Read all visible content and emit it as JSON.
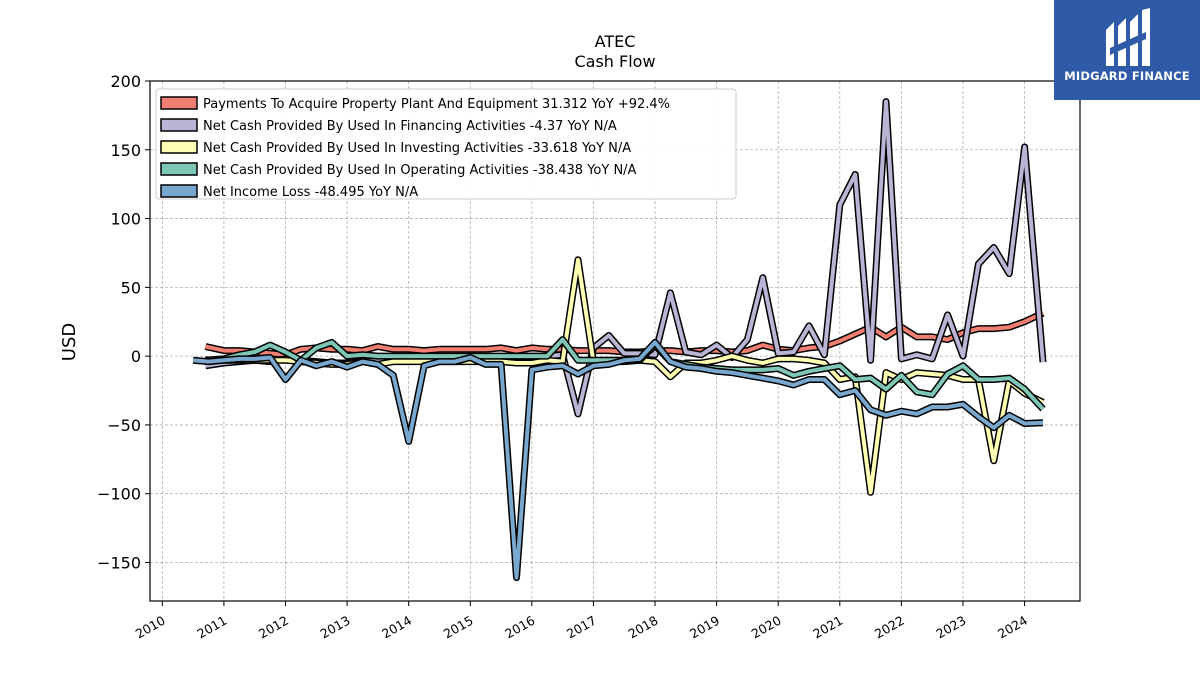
{
  "logo": {
    "text": "MIDGARD FINANCE",
    "icon": "midgard-logo-icon",
    "background": "#2f5aa8"
  },
  "chart_data": {
    "type": "line",
    "title": "ATEC",
    "subtitle": "Cash Flow",
    "ylabel": "USD",
    "xlabel": "",
    "xlim": [
      2009.8,
      2024.9
    ],
    "ylim": [
      -178,
      200
    ],
    "yticks": [
      200,
      150,
      100,
      50,
      0,
      -50,
      -100,
      -150
    ],
    "ytick_labels": [
      "200",
      "150",
      "100",
      "50",
      "0",
      "−50",
      "−100",
      "−150"
    ],
    "xticks": [
      2010,
      2011,
      2012,
      2013,
      2014,
      2015,
      2016,
      2017,
      2018,
      2019,
      2020,
      2021,
      2022,
      2023,
      2024
    ],
    "xtick_labels": [
      "2010",
      "2011",
      "2012",
      "2013",
      "2014",
      "2015",
      "2016",
      "2017",
      "2018",
      "2019",
      "2020",
      "2021",
      "2022",
      "2023",
      "2024"
    ],
    "grid": true,
    "legend_position": "top-left",
    "series": [
      {
        "name": "Payments To Acquire Property Plant And Equipment  31.312 YoY +92.4%",
        "color": "#f07f71",
        "points": [
          [
            2010.7,
            7
          ],
          [
            2011.0,
            4
          ],
          [
            2011.25,
            4
          ],
          [
            2011.5,
            3
          ],
          [
            2011.75,
            2
          ],
          [
            2012.0,
            1
          ],
          [
            2012.25,
            5
          ],
          [
            2012.5,
            6
          ],
          [
            2012.75,
            5
          ],
          [
            2013.0,
            5
          ],
          [
            2013.25,
            4
          ],
          [
            2013.5,
            7
          ],
          [
            2013.75,
            5
          ],
          [
            2014.0,
            5
          ],
          [
            2014.25,
            4
          ],
          [
            2014.5,
            5
          ],
          [
            2014.75,
            5
          ],
          [
            2015.0,
            5
          ],
          [
            2015.25,
            5
          ],
          [
            2015.5,
            6
          ],
          [
            2015.75,
            4
          ],
          [
            2016.0,
            6
          ],
          [
            2016.25,
            5
          ],
          [
            2016.5,
            5
          ],
          [
            2016.75,
            4
          ],
          [
            2017.0,
            4
          ],
          [
            2017.25,
            4
          ],
          [
            2017.5,
            3
          ],
          [
            2017.75,
            3
          ],
          [
            2018.0,
            4
          ],
          [
            2018.25,
            4
          ],
          [
            2018.5,
            3
          ],
          [
            2018.75,
            4
          ],
          [
            2019.0,
            4
          ],
          [
            2019.25,
            3
          ],
          [
            2019.5,
            4
          ],
          [
            2019.75,
            8
          ],
          [
            2020.0,
            5
          ],
          [
            2020.25,
            4
          ],
          [
            2020.5,
            6
          ],
          [
            2020.75,
            7
          ],
          [
            2021.0,
            11
          ],
          [
            2021.25,
            16
          ],
          [
            2021.5,
            21
          ],
          [
            2021.75,
            14
          ],
          [
            2022.0,
            21
          ],
          [
            2022.25,
            14
          ],
          [
            2022.5,
            14
          ],
          [
            2022.75,
            12
          ],
          [
            2023.0,
            17
          ],
          [
            2023.25,
            20
          ],
          [
            2023.5,
            20
          ],
          [
            2023.75,
            21
          ],
          [
            2024.0,
            25
          ],
          [
            2024.3,
            31.3
          ]
        ]
      },
      {
        "name": "Net Cash Provided By Used In Financing Activities  -4.37 YoY N/A",
        "color": "#bab5d5",
        "points": [
          [
            2010.7,
            -7
          ],
          [
            2011.0,
            -5
          ],
          [
            2011.25,
            -4
          ],
          [
            2011.5,
            -3
          ],
          [
            2011.75,
            -4
          ],
          [
            2012.0,
            -2
          ],
          [
            2012.25,
            -3
          ],
          [
            2012.5,
            -4
          ],
          [
            2012.75,
            -5
          ],
          [
            2013.0,
            -5
          ],
          [
            2013.25,
            -3
          ],
          [
            2013.5,
            -4
          ],
          [
            2013.75,
            -2
          ],
          [
            2014.0,
            -2
          ],
          [
            2014.25,
            -3
          ],
          [
            2014.5,
            -2
          ],
          [
            2014.75,
            -2
          ],
          [
            2015.0,
            -2
          ],
          [
            2015.25,
            -2
          ],
          [
            2015.5,
            -2
          ],
          [
            2015.75,
            -1
          ],
          [
            2016.0,
            -1
          ],
          [
            2016.25,
            0
          ],
          [
            2016.5,
            1
          ],
          [
            2016.75,
            -42
          ],
          [
            2017.0,
            6
          ],
          [
            2017.25,
            15
          ],
          [
            2017.5,
            2
          ],
          [
            2017.75,
            2
          ],
          [
            2018.0,
            1
          ],
          [
            2018.25,
            46
          ],
          [
            2018.5,
            3
          ],
          [
            2018.75,
            1
          ],
          [
            2019.0,
            8
          ],
          [
            2019.25,
            -1
          ],
          [
            2019.5,
            12
          ],
          [
            2019.75,
            57
          ],
          [
            2020.0,
            2
          ],
          [
            2020.25,
            3
          ],
          [
            2020.5,
            22
          ],
          [
            2020.75,
            1
          ],
          [
            2021.0,
            110
          ],
          [
            2021.25,
            132
          ],
          [
            2021.5,
            -3
          ],
          [
            2021.75,
            185
          ],
          [
            2022.0,
            -2
          ],
          [
            2022.25,
            1
          ],
          [
            2022.5,
            -2
          ],
          [
            2022.75,
            30
          ],
          [
            2023.0,
            0
          ],
          [
            2023.25,
            67
          ],
          [
            2023.5,
            79
          ],
          [
            2023.75,
            60
          ],
          [
            2024.0,
            152
          ],
          [
            2024.3,
            -4.37
          ]
        ]
      },
      {
        "name": "Net Cash Provided By Used In Investing Activities  -33.618 YoY N/A",
        "color": "#ffffb3",
        "points": [
          [
            2010.7,
            -3
          ],
          [
            2011.0,
            -3
          ],
          [
            2011.25,
            -3
          ],
          [
            2011.5,
            -3
          ],
          [
            2011.75,
            -3
          ],
          [
            2012.0,
            -3
          ],
          [
            2012.25,
            -4
          ],
          [
            2012.5,
            -5
          ],
          [
            2012.75,
            -6
          ],
          [
            2013.0,
            -6
          ],
          [
            2013.25,
            -4
          ],
          [
            2013.5,
            -6
          ],
          [
            2013.75,
            -4
          ],
          [
            2014.0,
            -4
          ],
          [
            2014.25,
            -4
          ],
          [
            2014.5,
            -4
          ],
          [
            2014.75,
            -4
          ],
          [
            2015.0,
            -4
          ],
          [
            2015.25,
            -4
          ],
          [
            2015.5,
            -4
          ],
          [
            2015.75,
            -5
          ],
          [
            2016.0,
            -5
          ],
          [
            2016.25,
            -3
          ],
          [
            2016.5,
            -4
          ],
          [
            2016.75,
            70
          ],
          [
            2017.0,
            -4
          ],
          [
            2017.25,
            -4
          ],
          [
            2017.5,
            -4
          ],
          [
            2017.75,
            -3
          ],
          [
            2018.0,
            -4
          ],
          [
            2018.25,
            -15
          ],
          [
            2018.5,
            -5
          ],
          [
            2018.75,
            -5
          ],
          [
            2019.0,
            -3
          ],
          [
            2019.25,
            0
          ],
          [
            2019.5,
            -3
          ],
          [
            2019.75,
            -5
          ],
          [
            2020.0,
            -2
          ],
          [
            2020.25,
            -2
          ],
          [
            2020.5,
            -3
          ],
          [
            2020.75,
            -5
          ],
          [
            2021.0,
            -17
          ],
          [
            2021.25,
            -15
          ],
          [
            2021.5,
            -99
          ],
          [
            2021.75,
            -12
          ],
          [
            2022.0,
            -17
          ],
          [
            2022.25,
            -12
          ],
          [
            2022.5,
            -13
          ],
          [
            2022.75,
            -14
          ],
          [
            2023.0,
            -17
          ],
          [
            2023.25,
            -17
          ],
          [
            2023.5,
            -76
          ],
          [
            2023.75,
            -18
          ],
          [
            2024.0,
            -27
          ],
          [
            2024.3,
            -33.618
          ]
        ]
      },
      {
        "name": "Net Cash Provided By Used In Operating Activities  -38.438 YoY N/A",
        "color": "#7ec6b5",
        "points": [
          [
            2010.7,
            -3
          ],
          [
            2011.0,
            -2
          ],
          [
            2011.25,
            1
          ],
          [
            2011.5,
            3
          ],
          [
            2011.75,
            8
          ],
          [
            2012.0,
            3
          ],
          [
            2012.25,
            -3
          ],
          [
            2012.5,
            6
          ],
          [
            2012.75,
            10
          ],
          [
            2013.0,
            0
          ],
          [
            2013.25,
            1
          ],
          [
            2013.5,
            0
          ],
          [
            2013.75,
            0
          ],
          [
            2014.0,
            0
          ],
          [
            2014.25,
            0
          ],
          [
            2014.5,
            0
          ],
          [
            2014.75,
            0
          ],
          [
            2015.0,
            0
          ],
          [
            2015.25,
            0
          ],
          [
            2015.5,
            0
          ],
          [
            2015.75,
            0
          ],
          [
            2016.0,
            0
          ],
          [
            2016.25,
            0
          ],
          [
            2016.5,
            12
          ],
          [
            2016.75,
            -3
          ],
          [
            2017.0,
            -3
          ],
          [
            2017.25,
            -3
          ],
          [
            2017.5,
            -3
          ],
          [
            2017.75,
            -3
          ],
          [
            2018.0,
            8
          ],
          [
            2018.25,
            -4
          ],
          [
            2018.5,
            -6
          ],
          [
            2018.75,
            -8
          ],
          [
            2019.0,
            -9
          ],
          [
            2019.25,
            -10
          ],
          [
            2019.5,
            -10
          ],
          [
            2019.75,
            -10
          ],
          [
            2020.0,
            -9
          ],
          [
            2020.25,
            -14
          ],
          [
            2020.5,
            -11
          ],
          [
            2020.75,
            -9
          ],
          [
            2021.0,
            -7
          ],
          [
            2021.25,
            -17
          ],
          [
            2021.5,
            -16
          ],
          [
            2021.75,
            -24
          ],
          [
            2022.0,
            -14
          ],
          [
            2022.25,
            -26
          ],
          [
            2022.5,
            -28
          ],
          [
            2022.75,
            -13
          ],
          [
            2023.0,
            -7
          ],
          [
            2023.25,
            -17
          ],
          [
            2023.5,
            -17
          ],
          [
            2023.75,
            -16
          ],
          [
            2024.0,
            -24
          ],
          [
            2024.3,
            -38.438
          ]
        ]
      },
      {
        "name": "Net Income Loss  -48.495 YoY N/A",
        "color": "#79a8cf",
        "points": [
          [
            2010.5,
            -3
          ],
          [
            2010.75,
            -4
          ],
          [
            2011.0,
            -3
          ],
          [
            2011.25,
            -2
          ],
          [
            2011.5,
            -2
          ],
          [
            2011.75,
            -1
          ],
          [
            2012.0,
            -17
          ],
          [
            2012.25,
            -3
          ],
          [
            2012.5,
            -7
          ],
          [
            2012.75,
            -4
          ],
          [
            2013.0,
            -8
          ],
          [
            2013.25,
            -4
          ],
          [
            2013.5,
            -6
          ],
          [
            2013.75,
            -14
          ],
          [
            2014.0,
            -62
          ],
          [
            2014.25,
            -7
          ],
          [
            2014.5,
            -4
          ],
          [
            2014.75,
            -4
          ],
          [
            2015.0,
            -1
          ],
          [
            2015.25,
            -6
          ],
          [
            2015.5,
            -6
          ],
          [
            2015.75,
            -161
          ],
          [
            2016.0,
            -10
          ],
          [
            2016.25,
            -8
          ],
          [
            2016.5,
            -7
          ],
          [
            2016.75,
            -13
          ],
          [
            2017.0,
            -7
          ],
          [
            2017.25,
            -6
          ],
          [
            2017.5,
            -3
          ],
          [
            2017.75,
            -2
          ],
          [
            2018.0,
            10
          ],
          [
            2018.25,
            -4
          ],
          [
            2018.5,
            -8
          ],
          [
            2018.75,
            -9
          ],
          [
            2019.0,
            -11
          ],
          [
            2019.25,
            -12
          ],
          [
            2019.5,
            -14
          ],
          [
            2019.75,
            -16
          ],
          [
            2020.0,
            -18
          ],
          [
            2020.25,
            -21
          ],
          [
            2020.5,
            -17
          ],
          [
            2020.75,
            -17
          ],
          [
            2021.0,
            -28
          ],
          [
            2021.25,
            -25
          ],
          [
            2021.5,
            -39
          ],
          [
            2021.75,
            -43
          ],
          [
            2022.0,
            -40
          ],
          [
            2022.25,
            -42
          ],
          [
            2022.5,
            -37
          ],
          [
            2022.75,
            -37
          ],
          [
            2023.0,
            -35
          ],
          [
            2023.25,
            -44
          ],
          [
            2023.5,
            -52
          ],
          [
            2023.75,
            -43
          ],
          [
            2024.0,
            -49
          ],
          [
            2024.3,
            -48.495
          ]
        ]
      }
    ]
  }
}
